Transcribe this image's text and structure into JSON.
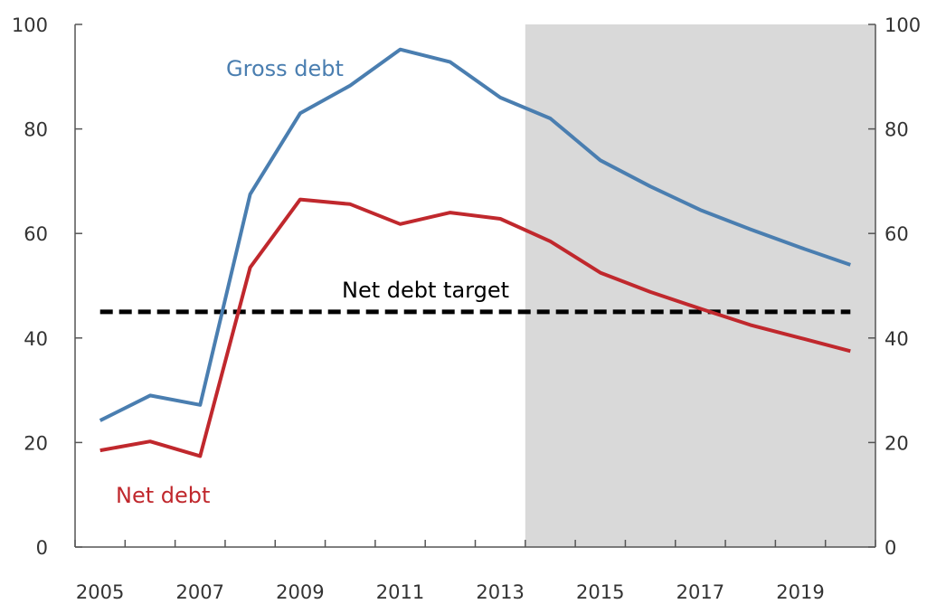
{
  "chart_data": {
    "type": "line",
    "x": [
      2005,
      2006,
      2007,
      2008,
      2009,
      2010,
      2011,
      2012,
      2013,
      2014,
      2015,
      2016,
      2017,
      2018,
      2019,
      2020
    ],
    "xlim": [
      2004.5,
      2020.5
    ],
    "ylim": [
      0,
      100
    ],
    "x_tick_labels": [
      "2005",
      "2007",
      "2009",
      "2011",
      "2013",
      "2015",
      "2017",
      "2019"
    ],
    "y_tick_labels": [
      "0",
      "20",
      "40",
      "60",
      "80",
      "100"
    ],
    "y_ticks": [
      0,
      20,
      40,
      60,
      80,
      100
    ],
    "grid": false,
    "shaded_region": {
      "from": 2013.5,
      "to": 2020.5,
      "color": "#d9d9d9"
    },
    "series": [
      {
        "name": "Gross debt",
        "color": "#4a7eb0",
        "values": [
          24.2,
          29.0,
          27.2,
          67.5,
          83.0,
          88.3,
          95.2,
          92.8,
          86.0,
          82.0,
          74.0,
          69.0,
          64.5,
          60.8,
          57.3,
          54.0
        ]
      },
      {
        "name": "Net debt",
        "color": "#c0282d",
        "values": [
          18.5,
          20.2,
          17.4,
          53.5,
          66.5,
          65.6,
          61.8,
          64.0,
          62.8,
          58.5,
          52.5,
          48.8,
          45.6,
          42.5,
          40.0,
          37.5
        ]
      },
      {
        "name": "Net debt target",
        "color": "#000000",
        "style": "dashed",
        "values": [
          45,
          45,
          45,
          45,
          45,
          45,
          45,
          45,
          45,
          45,
          45,
          45,
          45,
          45,
          45,
          45
        ]
      }
    ]
  }
}
